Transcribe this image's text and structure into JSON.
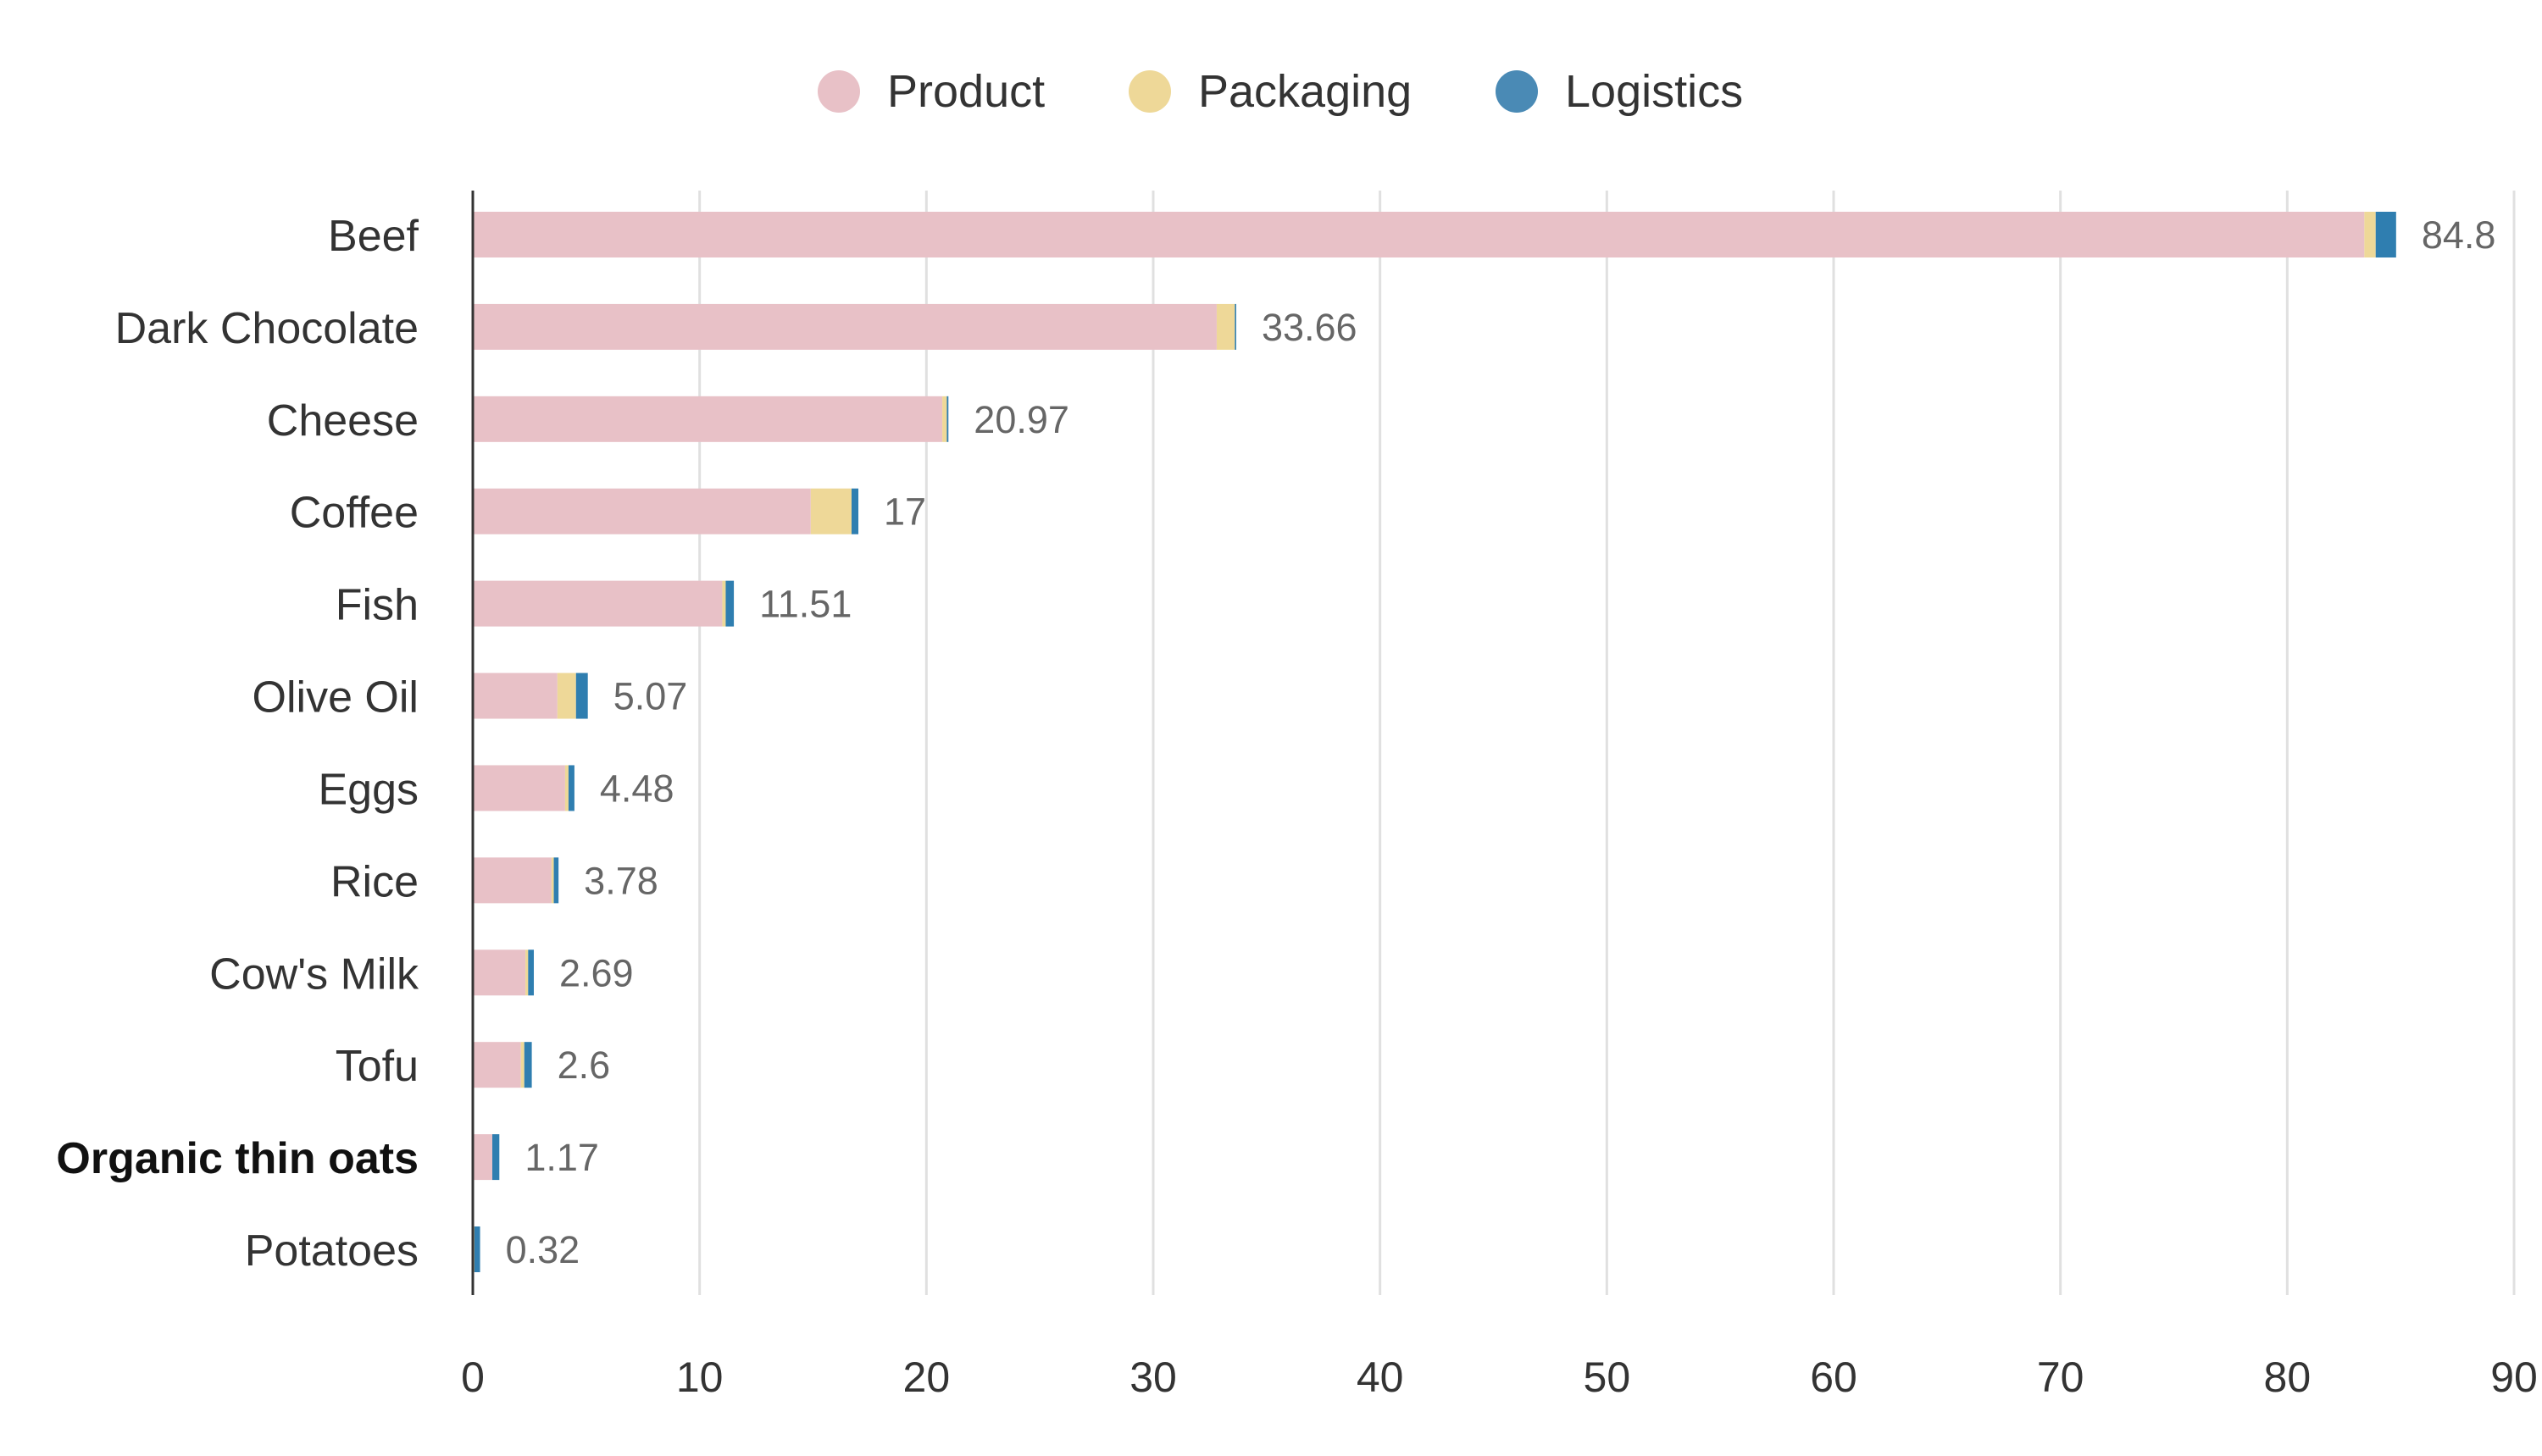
{
  "chart_data": {
    "type": "bar",
    "orientation": "horizontal",
    "stacked": true,
    "title": "",
    "xlabel": "",
    "ylabel": "",
    "xlim": [
      0,
      90
    ],
    "xticks": [
      0,
      10,
      20,
      30,
      40,
      50,
      60,
      70,
      80,
      90
    ],
    "grid": true,
    "legend_position": "top-center",
    "categories": [
      "Beef",
      "Dark Chocolate",
      "Cheese",
      "Coffee",
      "Fish",
      "Olive Oil",
      "Eggs",
      "Rice",
      "Cow's Milk",
      "Tofu",
      "Organic thin oats",
      "Potatoes"
    ],
    "highlighted_category": "Organic thin oats",
    "totals": [
      "84.8",
      "33.66",
      "20.97",
      "17",
      "11.51",
      "5.07",
      "4.48",
      "3.78",
      "2.69",
      "2.6",
      "1.17",
      "0.32"
    ],
    "series": [
      {
        "name": "Product",
        "color": "#e8c1c7",
        "values": [
          83.4,
          32.8,
          20.7,
          14.9,
          11.0,
          3.73,
          4.07,
          3.47,
          2.32,
          2.12,
          0.86,
          0.05
        ]
      },
      {
        "name": "Packaging",
        "color": "#eed898",
        "values": [
          0.5,
          0.8,
          0.2,
          1.8,
          0.15,
          0.82,
          0.15,
          0.1,
          0.12,
          0.15,
          0.0,
          0.02
        ]
      },
      {
        "name": "Logistics",
        "color": "#2f7eb0",
        "values": [
          0.9,
          0.06,
          0.07,
          0.3,
          0.36,
          0.52,
          0.26,
          0.21,
          0.25,
          0.33,
          0.31,
          0.25
        ]
      }
    ],
    "legend_colors": [
      "#e8c1c7",
      "#eed898",
      "#4a8ab5"
    ]
  }
}
